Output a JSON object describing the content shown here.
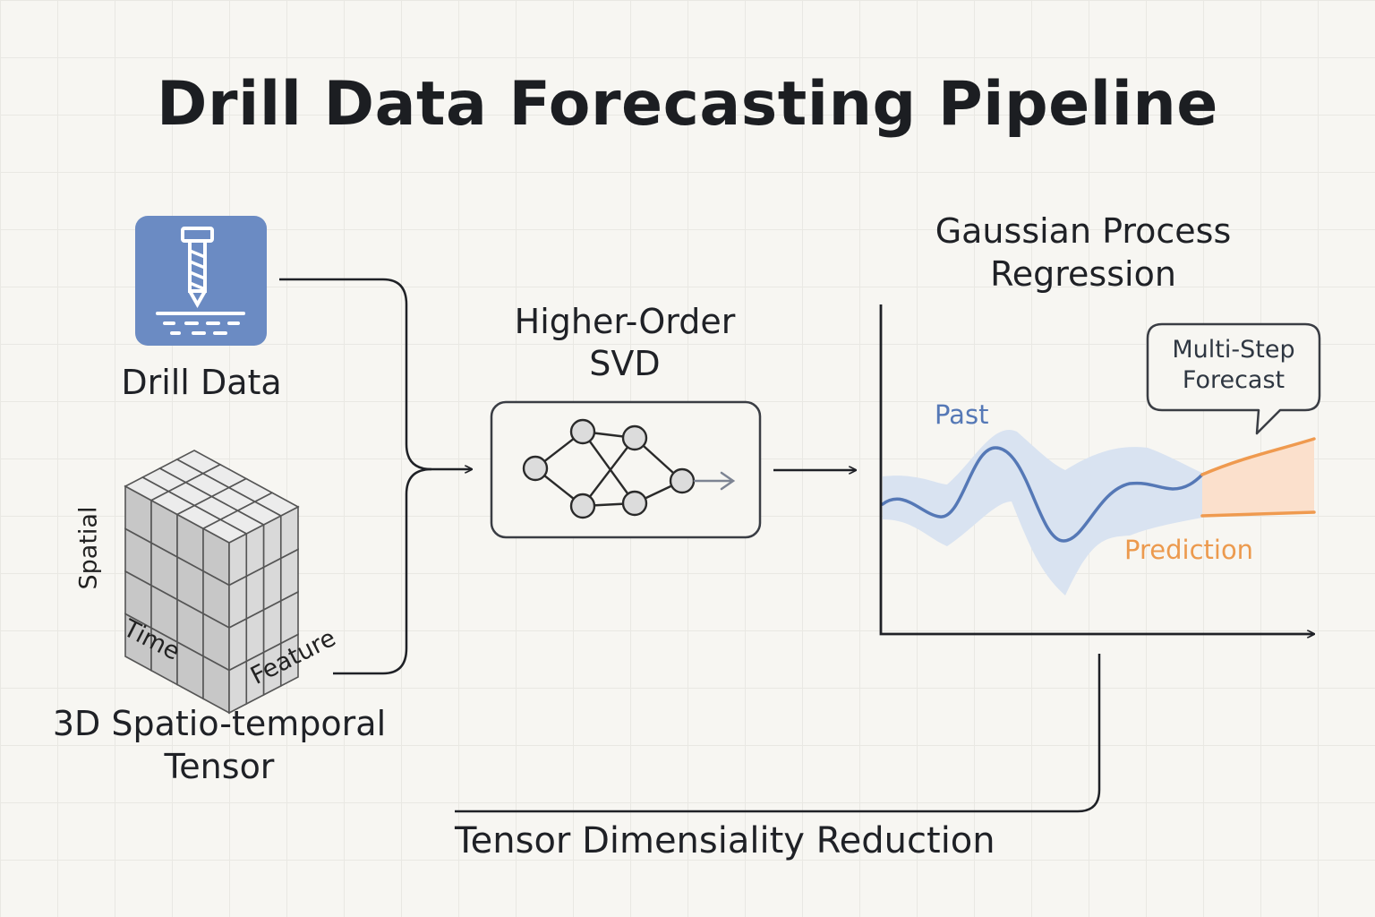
{
  "title": "Drill Data Forecasting Pipeline",
  "inputs": {
    "drill_data_label": "Drill Data",
    "tensor_label_line1": "3D Spatio-temporal",
    "tensor_label_line2": "Tensor",
    "tensor_axes": {
      "spatial": "Spatial",
      "time": "Time",
      "feature": "Feature"
    }
  },
  "hosvd": {
    "line1": "Higher-Order",
    "line2": "SVD"
  },
  "gpr": {
    "title_line1": "Gaussian Process",
    "title_line2": "Regression",
    "past_label": "Past",
    "prediction_label": "Prediction",
    "callout_line1": "Multi-Step",
    "callout_line2": "Forecast"
  },
  "bottom_label": "Tensor Dimensiality Reduction",
  "icons": [
    "drill-icon",
    "tensor-cube-icon",
    "network-icon"
  ],
  "colors": {
    "drill_tile": "#6b8bc3",
    "past_line": "#5578b6",
    "past_band": "#d9e3f1",
    "prediction_line": "#ef9a4f",
    "prediction_band": "#fbe0cc",
    "connector": "#1f2126",
    "node_fill": "#dcdcdc"
  }
}
